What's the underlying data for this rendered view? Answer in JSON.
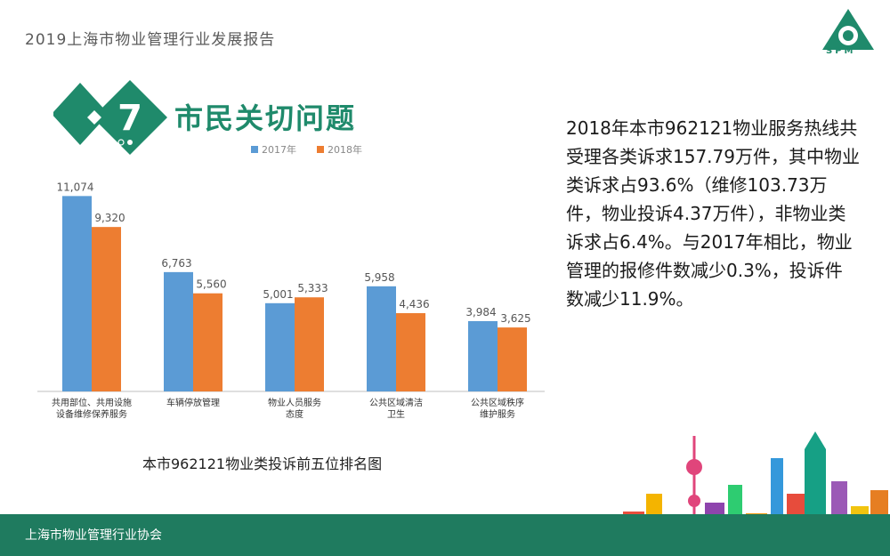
{
  "header": {
    "report_title": "2019上海市物业管理行业发展报告",
    "logo_text": "SPM"
  },
  "section": {
    "number": "7",
    "title": "市民关切问题"
  },
  "chart_data": {
    "type": "bar",
    "categories": [
      [
        "共用部位、共用设施",
        "设备维修保养服务"
      ],
      [
        "车辆停放管理"
      ],
      [
        "物业人员服务",
        "态度"
      ],
      [
        "公共区域清洁",
        "卫生"
      ],
      [
        "公共区域秩序",
        "维护服务"
      ]
    ],
    "series": [
      {
        "name": "2017年",
        "values": [
          11074,
          6763,
          5001,
          5958,
          3984
        ],
        "labels": [
          "11,074",
          "6,763",
          "5,001",
          "5,958",
          "3,984"
        ],
        "color": "#5b9bd5"
      },
      {
        "name": "2018年",
        "values": [
          9320,
          5560,
          5333,
          4436,
          3625
        ],
        "labels": [
          "9,320",
          "5,560",
          "5,333",
          "4,436",
          "3,625"
        ],
        "color": "#ed7d31"
      }
    ],
    "ylim": [
      0,
      12000
    ],
    "legend": "top",
    "grid": false,
    "caption": "本市962121物业类投诉前五位排名图"
  },
  "description": "2018年本市962121物业服务热线共受理各类诉求157.79万件，其中物业类诉求占93.6%（维修103.73万件，物业投诉4.37万件），非物业类诉求占6.4%。与2017年相比，物业管理的报修件数减少0.3%，投诉件数减少11.9%。",
  "footer": {
    "text": "上海市物业管理行业协会"
  },
  "colors": {
    "brand_green": "#1f8a6b",
    "footer_green": "#1f7b5f"
  }
}
